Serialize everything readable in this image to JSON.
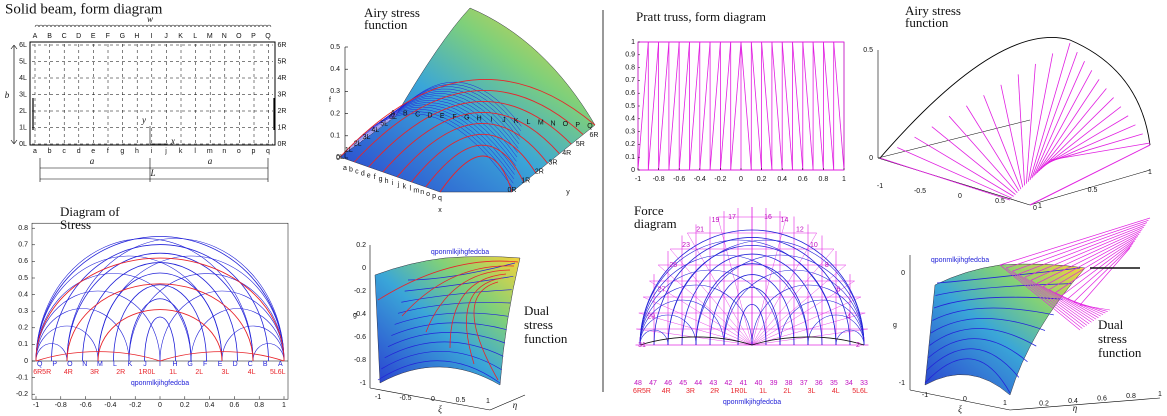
{
  "beam": {
    "title": "Solid beam, form diagram",
    "top": [
      "A",
      "B",
      "C",
      "D",
      "E",
      "F",
      "G",
      "H",
      "I",
      "J",
      "K",
      "L",
      "M",
      "N",
      "O",
      "P",
      "Q"
    ],
    "bottom": [
      "a",
      "b",
      "c",
      "d",
      "e",
      "f",
      "g",
      "h",
      "i",
      "j",
      "k",
      "l",
      "m",
      "n",
      "o",
      "p",
      "q"
    ],
    "left": [
      "6L",
      "5L",
      "4L",
      "3L",
      "2L",
      "1L",
      "0L"
    ],
    "right": [
      "6R",
      "5R",
      "4R",
      "3R",
      "2R",
      "1R",
      "0R"
    ],
    "load": "w",
    "depth": "b",
    "half_span": "a",
    "span": "L",
    "x": "x",
    "y": "y"
  },
  "airy_beam": {
    "title": [
      "Airy stress",
      "function"
    ],
    "zlabel": "f",
    "xlabel": "x",
    "ylabel": "y",
    "zticks": [
      0,
      0.1,
      0.2,
      0.3,
      0.4,
      0.5
    ],
    "top": [
      "A",
      "B",
      "C",
      "D",
      "E",
      "F",
      "G",
      "H",
      "I",
      "J",
      "K",
      "L",
      "M",
      "N",
      "O",
      "P",
      "Q"
    ],
    "bottom": [
      "a",
      "b",
      "c",
      "d",
      "e",
      "f",
      "g",
      "h",
      "i",
      "j",
      "k",
      "l",
      "m",
      "n",
      "o",
      "p",
      "q"
    ],
    "left": [
      "0L",
      "1L",
      "2L",
      "3L",
      "4L",
      "5L",
      "6L"
    ],
    "right": [
      "0R",
      "1R",
      "2R",
      "3R",
      "4R",
      "5R",
      "6R"
    ]
  },
  "truss": {
    "title": "Pratt truss, form diagram",
    "xticks": [
      -1,
      -0.8,
      -0.6,
      -0.4,
      -0.2,
      0,
      0.2,
      0.4,
      0.6,
      0.8,
      1
    ],
    "yticks": [
      0,
      0.1,
      0.2,
      0.3,
      0.4,
      0.5,
      0.6,
      0.7,
      0.8,
      0.9,
      1
    ]
  },
  "airy_truss": {
    "title": [
      "Airy stress",
      "function"
    ],
    "zticks": [
      0,
      0.5
    ],
    "xticks": [
      -1,
      -0.5,
      0,
      0.5,
      1
    ],
    "yticks": [
      0,
      0.5,
      1
    ]
  },
  "stress": {
    "title": [
      "Diagram of",
      "Stress"
    ],
    "xticks": [
      -1,
      -0.8,
      -0.6,
      -0.4,
      -0.2,
      0,
      0.2,
      0.4,
      0.6,
      0.8,
      1
    ],
    "yticks": [
      -0.2,
      -0.1,
      0,
      0.1,
      0.2,
      0.3,
      0.4,
      0.5,
      0.6,
      0.7,
      0.8
    ],
    "upper": [
      "Q",
      "P",
      "O",
      "N",
      "M",
      "L",
      "K",
      "J",
      "I",
      "H",
      "G",
      "F",
      "E",
      "D",
      "C",
      "B",
      "A"
    ],
    "nodes": [
      "6R5R",
      "4R",
      "3R",
      "2R",
      "1R0L",
      "1L",
      "2L",
      "3L",
      "4L",
      "5L6L"
    ],
    "lower": "qponmlkjihgfedcba"
  },
  "dual_beam": {
    "title": [
      "Dual",
      "stress",
      "function"
    ],
    "ylabel": "g",
    "xlabel": "ξ",
    "zlabel": "η",
    "yticks": [
      0.2,
      0,
      -0.2,
      -0.4,
      -0.6,
      -0.8,
      -1
    ],
    "xticks": [
      -1,
      -0.5,
      0,
      0.5,
      1
    ],
    "lower": "qponmlkjihgfedcba"
  },
  "force": {
    "title": [
      "Force",
      "diagram"
    ],
    "bottom": [
      "48",
      "47",
      "46",
      "45",
      "44",
      "43",
      "42",
      "41",
      "40",
      "39",
      "38",
      "37",
      "36",
      "35",
      "34",
      "33"
    ],
    "left": [
      "31",
      "29",
      "27",
      "25",
      "23",
      "21",
      "19",
      "17"
    ],
    "right": [
      "2",
      "4",
      "6",
      "8",
      "10",
      "12",
      "14",
      "16"
    ],
    "nodes": [
      "6R5R",
      "4R",
      "3R",
      "2R",
      "1R0L",
      "1L",
      "2L",
      "3L",
      "4L",
      "5L6L"
    ],
    "lower": "qponmlkjihgfedcba"
  },
  "dual_truss": {
    "title": [
      "Dual",
      "stress",
      "function"
    ],
    "ylabel": "g",
    "xlabel": "ξ",
    "zlabel": "η",
    "yticks": [
      0,
      -1
    ],
    "xticks": [
      -1,
      0,
      1
    ],
    "zticks": [
      0.2,
      0.4,
      0.6,
      0.8,
      1
    ],
    "lower": "qponmlkjihgfedcba"
  }
}
